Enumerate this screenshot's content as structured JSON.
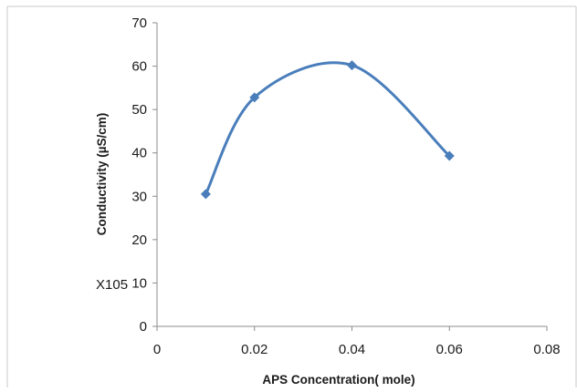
{
  "chart_data": {
    "type": "scatter",
    "style": "smoothed line with diamond markers",
    "series": [
      {
        "x": [
          0.01,
          0.02,
          0.04,
          0.06
        ],
        "y": [
          30.5,
          52.8,
          60.2,
          39.3
        ]
      }
    ],
    "xlabel": "APS Concentration( mole)",
    "ylabel": "Conductivity (µS/cm)",
    "xlim": [
      0,
      0.08
    ],
    "ylim": [
      0,
      70
    ],
    "x_ticks": [
      "0",
      "0.02",
      "0.04",
      "0.06",
      "0.08"
    ],
    "y_ticks": [
      "0",
      "10",
      "20",
      "30",
      "40",
      "50",
      "60",
      "70"
    ],
    "annotation": "X105",
    "grid": false,
    "legend": "none",
    "series_color": "#4a7ebb"
  }
}
